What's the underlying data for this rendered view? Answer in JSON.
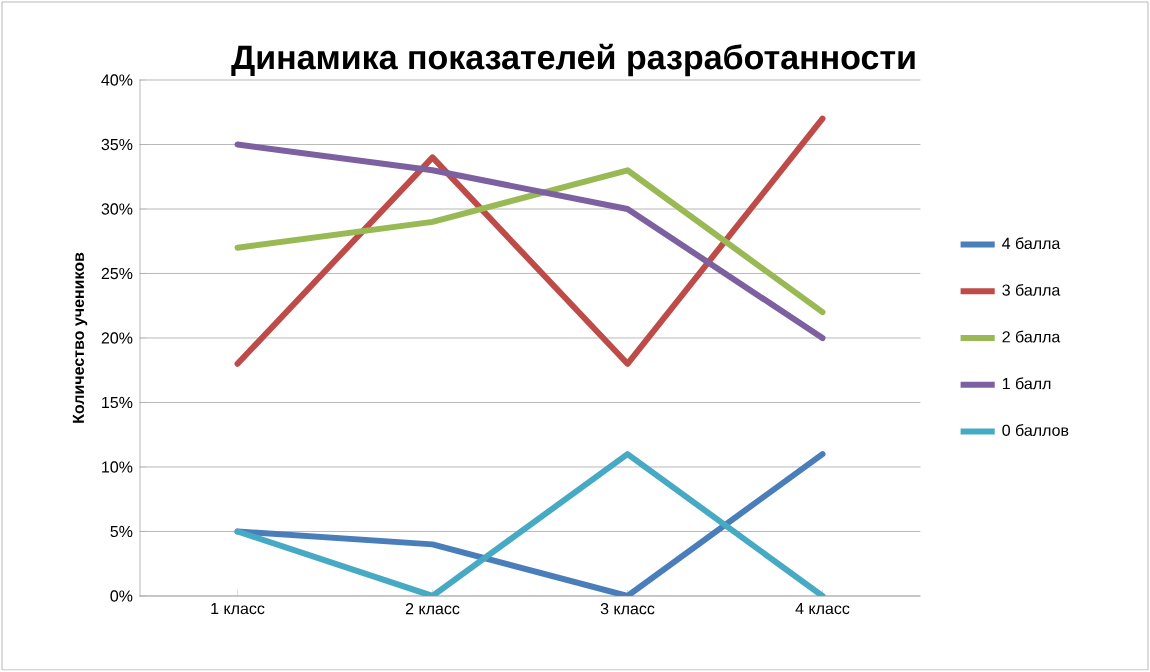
{
  "chart_data": {
    "type": "line",
    "title": "Динамика показателей разработанности",
    "ylabel": "Количество  учеников",
    "categories": [
      "1 класс",
      "2 класс",
      "3 класс",
      "4 класс"
    ],
    "series": [
      {
        "name": "4 балла",
        "color": "#4a7ebb",
        "values": [
          5,
          4,
          0,
          11
        ]
      },
      {
        "name": "3 балла",
        "color": "#be4b48",
        "values": [
          18,
          34,
          18,
          37
        ]
      },
      {
        "name": "2 балла",
        "color": "#98b954",
        "values": [
          27,
          29,
          33,
          22
        ]
      },
      {
        "name": "1 балл",
        "color": "#7d60a0",
        "values": [
          35,
          33,
          30,
          20
        ]
      },
      {
        "name": "0 баллов",
        "color": "#46aac5",
        "values": [
          5,
          0,
          11,
          0
        ]
      }
    ],
    "ylim": [
      0,
      40
    ],
    "yticks": [
      {
        "value": 0,
        "label": "0%"
      },
      {
        "value": 5,
        "label": "5%"
      },
      {
        "value": 10,
        "label": "10%"
      },
      {
        "value": 15,
        "label": "15%"
      },
      {
        "value": 20,
        "label": "20%"
      },
      {
        "value": 25,
        "label": "25%"
      },
      {
        "value": 30,
        "label": "30%"
      },
      {
        "value": 35,
        "label": "35%"
      },
      {
        "value": 40,
        "label": "40%"
      }
    ],
    "grid": "y",
    "legend": "right",
    "marker": "none",
    "line_style": "solid"
  }
}
